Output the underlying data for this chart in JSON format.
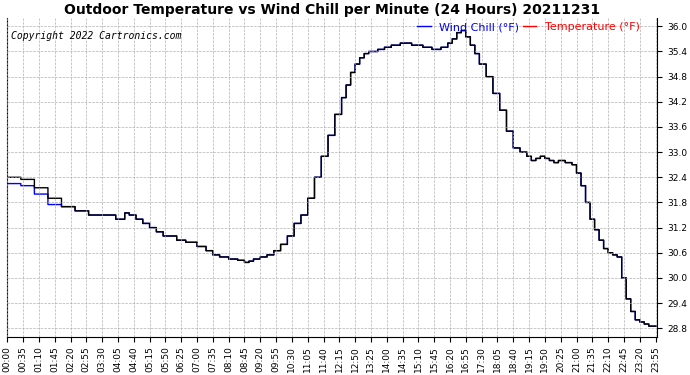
{
  "title": "Outdoor Temperature vs Wind Chill per Minute (24 Hours) 20211231",
  "copyright_text": "Copyright 2022 Cartronics.com",
  "legend_wind_chill": "Wind Chill (°F)",
  "legend_temperature": "Temperature (°F)",
  "wind_chill_color": "blue",
  "temperature_color": "red",
  "black_color": "#000000",
  "background_color": "white",
  "ylim": [
    28.6,
    36.2
  ],
  "ytick_values": [
    28.8,
    29.4,
    30.0,
    30.6,
    31.2,
    31.8,
    32.4,
    33.0,
    33.6,
    34.2,
    34.8,
    35.4,
    36.0
  ],
  "grid_color": "#aaaaaa",
  "grid_linestyle": "--",
  "title_fontsize": 10,
  "copyright_fontsize": 7,
  "legend_fontsize": 8,
  "tick_fontsize": 6.5,
  "line_width": 1.0,
  "xtick_interval": 35,
  "figsize": [
    6.9,
    3.75
  ],
  "dpi": 100
}
